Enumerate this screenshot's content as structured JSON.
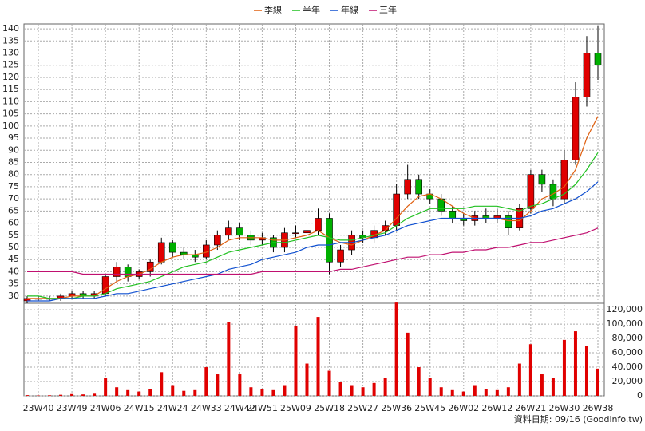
{
  "chart_data": {
    "type": "candlestick",
    "categories": [
      null,
      "23W40",
      null,
      null,
      "23W49",
      null,
      null,
      "24W06",
      null,
      null,
      "24W15",
      null,
      null,
      "24W24",
      null,
      null,
      "24W33",
      null,
      null,
      "24W42",
      null,
      "24W51",
      null,
      null,
      "25W09",
      null,
      null,
      "25W18",
      null,
      null,
      "25W27",
      null,
      null,
      "25W36",
      null,
      null,
      "25W45",
      null,
      null,
      "26W02",
      null,
      null,
      "26W12",
      null,
      null,
      "26W21",
      null,
      null,
      "26W30",
      null,
      null,
      "26W38"
    ],
    "open": [
      28,
      29,
      29,
      29,
      30,
      31,
      30,
      31,
      38,
      42,
      38,
      40,
      44,
      52,
      48,
      47,
      46,
      51,
      55,
      58,
      55,
      53,
      54,
      50,
      56,
      56,
      57,
      62,
      44,
      49,
      55,
      54,
      57,
      59,
      72,
      78,
      72,
      70,
      65,
      62,
      61,
      63,
      62,
      63,
      58,
      66,
      80,
      76,
      70,
      86,
      112,
      130
    ],
    "high": [
      30,
      30,
      30,
      31,
      32,
      32,
      32,
      39,
      44,
      43,
      41,
      45,
      54,
      53,
      50,
      49,
      53,
      57,
      61,
      60,
      57,
      56,
      55,
      58,
      59,
      59,
      66,
      64,
      51,
      57,
      57,
      59,
      61,
      76,
      84,
      80,
      74,
      72,
      67,
      64,
      65,
      66,
      66,
      65,
      68,
      82,
      82,
      78,
      90,
      118,
      137,
      141
    ],
    "low": [
      27,
      28,
      28,
      28,
      29,
      29,
      29,
      30,
      36,
      36,
      37,
      38,
      43,
      46,
      45,
      44,
      45,
      49,
      53,
      53,
      51,
      51,
      48,
      48,
      54,
      54,
      55,
      39,
      42,
      47,
      52,
      52,
      55,
      57,
      70,
      70,
      68,
      63,
      60,
      59,
      59,
      60,
      60,
      55,
      57,
      64,
      73,
      67,
      68,
      84,
      108,
      119
    ],
    "close": [
      29,
      29,
      29,
      30,
      31,
      30,
      31,
      38,
      42,
      38,
      40,
      44,
      52,
      48,
      47,
      46,
      51,
      55,
      58,
      55,
      53,
      54,
      50,
      56,
      56,
      57,
      62,
      44,
      49,
      55,
      54,
      57,
      59,
      72,
      78,
      72,
      70,
      65,
      62,
      61,
      63,
      62,
      63,
      58,
      66,
      80,
      76,
      70,
      86,
      112,
      130,
      125
    ],
    "up_color": "#e00000",
    "down_color": "#00b000",
    "ylim": [
      27,
      142
    ],
    "yticks": [
      30,
      35,
      40,
      45,
      50,
      55,
      60,
      65,
      70,
      75,
      80,
      85,
      90,
      95,
      100,
      105,
      110,
      115,
      120,
      125,
      130,
      135,
      140
    ],
    "grid": true,
    "series": [
      {
        "name": "季線",
        "color": "#e06010",
        "values": [
          29,
          29,
          29,
          29,
          30,
          30,
          30,
          33,
          36,
          38,
          39,
          41,
          44,
          46,
          47,
          47,
          48,
          50,
          53,
          54,
          54,
          54,
          53,
          53,
          54,
          55,
          57,
          54,
          52,
          51,
          53,
          55,
          57,
          62,
          67,
          71,
          72,
          70,
          67,
          64,
          62,
          62,
          62,
          61,
          61,
          65,
          70,
          72,
          75,
          82,
          95,
          104
        ]
      },
      {
        "name": "半年",
        "color": "#20c020",
        "values": [
          30,
          30,
          29,
          29,
          29,
          30,
          30,
          31,
          33,
          34,
          35,
          36,
          38,
          40,
          42,
          43,
          44,
          46,
          48,
          49,
          50,
          51,
          52,
          52,
          53,
          54,
          55,
          54,
          53,
          53,
          54,
          55,
          56,
          59,
          62,
          64,
          66,
          66,
          66,
          66,
          67,
          67,
          67,
          66,
          65,
          67,
          68,
          70,
          72,
          76,
          82,
          89
        ]
      },
      {
        "name": "年線",
        "color": "#1050d0",
        "values": [
          28,
          28,
          28,
          29,
          29,
          29,
          29,
          30,
          31,
          31,
          32,
          33,
          34,
          35,
          36,
          37,
          38,
          39,
          41,
          42,
          43,
          45,
          46,
          47,
          48,
          50,
          51,
          51,
          52,
          52,
          53,
          54,
          55,
          57,
          59,
          60,
          61,
          62,
          62,
          62,
          62,
          62,
          62,
          62,
          62,
          63,
          65,
          66,
          68,
          70,
          73,
          77
        ]
      },
      {
        "name": "三年",
        "color": "#c01070",
        "values": [
          40,
          40,
          40,
          40,
          40,
          39,
          39,
          39,
          39,
          39,
          39,
          39,
          39,
          39,
          39,
          39,
          39,
          39,
          39,
          39,
          39,
          40,
          40,
          40,
          40,
          40,
          40,
          40,
          41,
          41,
          42,
          43,
          44,
          45,
          46,
          46,
          47,
          47,
          48,
          48,
          49,
          49,
          50,
          50,
          51,
          52,
          52,
          53,
          54,
          55,
          56,
          58
        ]
      }
    ],
    "volume": {
      "color": "#e00000",
      "values": [
        1000,
        500,
        800,
        1500,
        2500,
        2000,
        3000,
        25000,
        12000,
        8000,
        6000,
        10000,
        33000,
        15000,
        7000,
        8000,
        40000,
        30000,
        103000,
        30000,
        12000,
        10000,
        8000,
        15000,
        97000,
        45000,
        110000,
        35000,
        20000,
        15000,
        12000,
        18000,
        25000,
        130000,
        88000,
        40000,
        25000,
        12000,
        8000,
        6000,
        15000,
        10000,
        8000,
        12000,
        45000,
        72000,
        30000,
        25000,
        78000,
        90000,
        70000,
        38000
      ],
      "ylim": [
        0,
        129000
      ],
      "yticks": [
        0,
        {
          "value": 20000,
          "label": "20,000"
        },
        {
          "value": 40000,
          "label": "40,000"
        },
        {
          "value": 60000,
          "label": "60,000"
        },
        {
          "value": 80000,
          "label": "80,000"
        },
        {
          "value": 100000,
          "label": "100,000"
        },
        {
          "value": 120000,
          "label": "120,000"
        }
      ]
    },
    "source": "資料日期: 09/16 (Goodinfo.tw)"
  }
}
